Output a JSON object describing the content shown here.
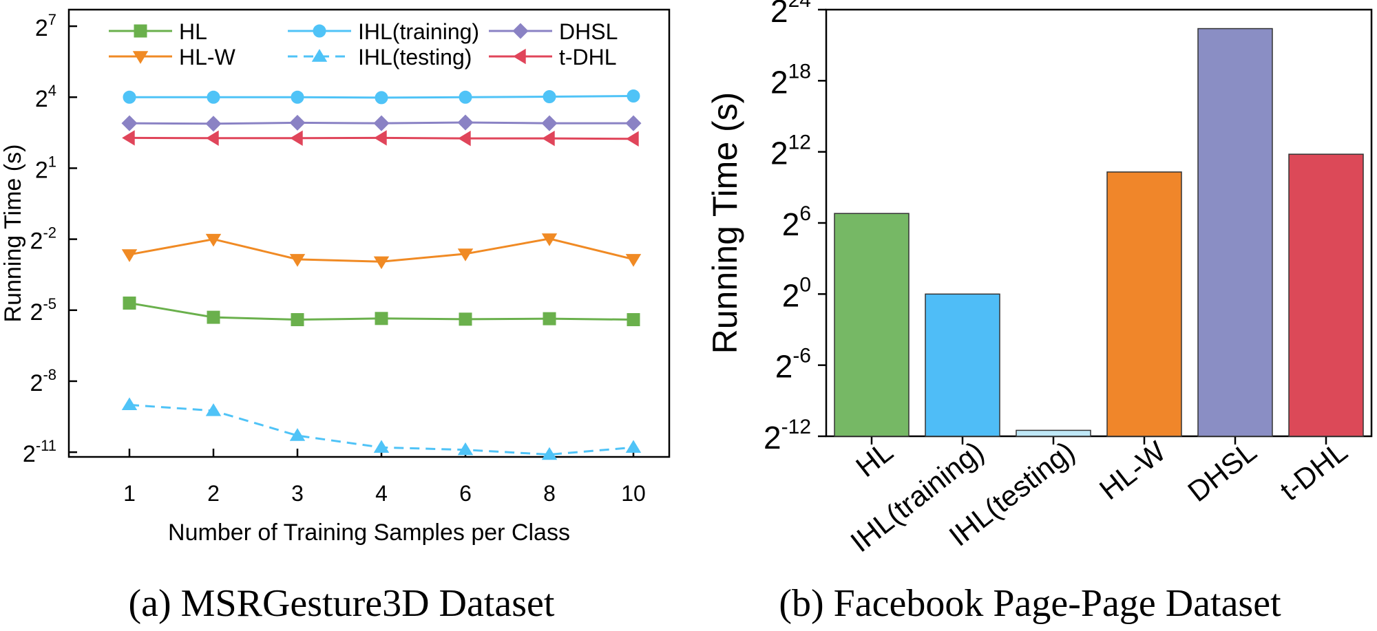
{
  "chart_data": [
    {
      "type": "line",
      "panel_caption": "(a) MSRGesture3D Dataset",
      "xlabel": "Number of Training Samples per Class",
      "ylabel": "Running Time (s)",
      "x_categories": [
        "1",
        "2",
        "3",
        "4",
        "6",
        "8",
        "10"
      ],
      "y_scale": "log2",
      "y_ticks": [
        {
          "base": "2",
          "exp": "7",
          "exp_value": 7
        },
        {
          "base": "2",
          "exp": "4",
          "exp_value": 4
        },
        {
          "base": "2",
          "exp": "1",
          "exp_value": 1
        },
        {
          "base": "2",
          "exp": "-2",
          "exp_value": -2
        },
        {
          "base": "2",
          "exp": "-5",
          "exp_value": -5
        },
        {
          "base": "2",
          "exp": "-8",
          "exp_value": -8
        },
        {
          "base": "2",
          "exp": "-11",
          "exp_value": -11
        }
      ],
      "ylim_exp": [
        -11.2,
        7.7
      ],
      "legend_placement": "top",
      "series": [
        {
          "name": "HL",
          "color": "#6ab04c",
          "marker": "square",
          "dashed": false,
          "values_log2": [
            -4.7,
            -5.3,
            -5.4,
            -5.35,
            -5.38,
            -5.36,
            -5.4
          ]
        },
        {
          "name": "IHL(training)",
          "color": "#4fc3f7",
          "marker": "circle",
          "dashed": false,
          "values_log2": [
            4.0,
            4.0,
            4.0,
            3.98,
            4.0,
            4.02,
            4.05
          ]
        },
        {
          "name": "DHSL",
          "color": "#8a82c4",
          "marker": "diamond",
          "dashed": false,
          "values_log2": [
            2.9,
            2.88,
            2.92,
            2.9,
            2.93,
            2.9,
            2.9
          ]
        },
        {
          "name": "HL-W",
          "color": "#f08a24",
          "marker": "triangle-down",
          "dashed": false,
          "values_log2": [
            -2.65,
            -2.0,
            -2.85,
            -2.95,
            -2.62,
            -1.98,
            -2.85
          ]
        },
        {
          "name": "IHL(testing)",
          "color": "#4fc3f7",
          "marker": "triangle-up",
          "dashed": true,
          "values_log2": [
            -9.0,
            -9.25,
            -10.3,
            -10.8,
            -10.9,
            -11.1,
            -10.8
          ]
        },
        {
          "name": "t-DHL",
          "color": "#e0455a",
          "marker": "triangle-left",
          "dashed": false,
          "values_log2": [
            2.28,
            2.27,
            2.27,
            2.28,
            2.26,
            2.26,
            2.24
          ]
        }
      ]
    },
    {
      "type": "bar",
      "panel_caption": "(b) Facebook Page-Page Dataset",
      "ylabel": "Running Time (s)",
      "y_scale": "log2",
      "y_ticks": [
        {
          "base": "2",
          "exp": "24",
          "exp_value": 24
        },
        {
          "base": "2",
          "exp": "18",
          "exp_value": 18
        },
        {
          "base": "2",
          "exp": "12",
          "exp_value": 12
        },
        {
          "base": "2",
          "exp": "6",
          "exp_value": 6
        },
        {
          "base": "2",
          "exp": "0",
          "exp_value": 0
        },
        {
          "base": "2",
          "exp": "-6",
          "exp_value": -6
        },
        {
          "base": "2",
          "exp": "-12",
          "exp_value": -12
        }
      ],
      "ylim_exp": [
        -12,
        24
      ],
      "categories": [
        "HL",
        "IHL(training)",
        "IHL(testing)",
        "HL-W",
        "DHSL",
        "t-DHL"
      ],
      "values_log2": [
        6.8,
        0.0,
        -11.5,
        10.3,
        22.4,
        11.8
      ],
      "colors": [
        "#76b865",
        "#4fbdf7",
        "#bfe8f7",
        "#f0862a",
        "#8a8ec4",
        "#dc4958"
      ]
    }
  ]
}
